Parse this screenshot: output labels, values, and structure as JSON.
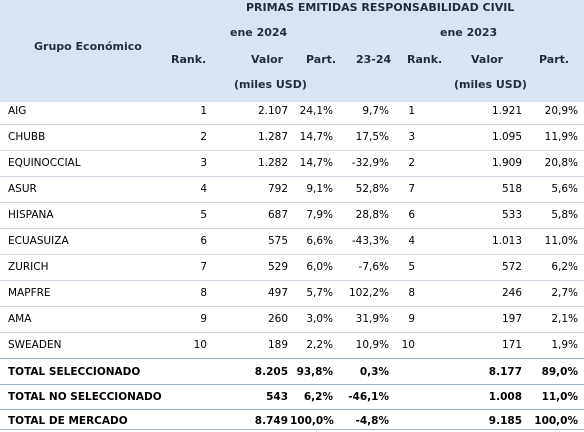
{
  "header": {
    "title": "PRIMAS EMITIDAS RESPONSABILIDAD CIVIL",
    "group_label": "Grupo Económico",
    "period_a": "ene 2024",
    "period_b": "ene 2023",
    "rank_a": "Rank.",
    "valor_a": "Valor",
    "units_a": "(miles USD)",
    "part_a": "Part.",
    "var": "23-24",
    "rank_b": "Rank.",
    "valor_b": "Valor",
    "units_b": "(miles USD)",
    "part_b": "Part."
  },
  "rows": [
    {
      "name": "AIG",
      "rank_a": "1",
      "valor_a": "2.107",
      "part_a": "24,1%",
      "var": "9,7%",
      "rank_b": "1",
      "valor_b": "1.921",
      "part_b": "20,9%"
    },
    {
      "name": "CHUBB",
      "rank_a": "2",
      "valor_a": "1.287",
      "part_a": "14,7%",
      "var": "17,5%",
      "rank_b": "3",
      "valor_b": "1.095",
      "part_b": "11,9%"
    },
    {
      "name": "EQUINOCCIAL",
      "rank_a": "3",
      "valor_a": "1.282",
      "part_a": "14,7%",
      "var": "-32,9%",
      "rank_b": "2",
      "valor_b": "1.909",
      "part_b": "20,8%"
    },
    {
      "name": "ASUR",
      "rank_a": "4",
      "valor_a": "792",
      "part_a": "9,1%",
      "var": "52,8%",
      "rank_b": "7",
      "valor_b": "518",
      "part_b": "5,6%"
    },
    {
      "name": "HISPANA",
      "rank_a": "5",
      "valor_a": "687",
      "part_a": "7,9%",
      "var": "28,8%",
      "rank_b": "6",
      "valor_b": "533",
      "part_b": "5,8%"
    },
    {
      "name": "ECUASUIZA",
      "rank_a": "6",
      "valor_a": "575",
      "part_a": "6,6%",
      "var": "-43,3%",
      "rank_b": "4",
      "valor_b": "1.013",
      "part_b": "11,0%"
    },
    {
      "name": "ZURICH",
      "rank_a": "7",
      "valor_a": "529",
      "part_a": "6,0%",
      "var": "-7,6%",
      "rank_b": "5",
      "valor_b": "572",
      "part_b": "6,2%"
    },
    {
      "name": "MAPFRE",
      "rank_a": "8",
      "valor_a": "497",
      "part_a": "5,7%",
      "var": "102,2%",
      "rank_b": "8",
      "valor_b": "246",
      "part_b": "2,7%"
    },
    {
      "name": "AMA",
      "rank_a": "9",
      "valor_a": "260",
      "part_a": "3,0%",
      "var": "31,9%",
      "rank_b": "9",
      "valor_b": "197",
      "part_b": "2,1%"
    },
    {
      "name": "SWEADEN",
      "rank_a": "10",
      "valor_a": "189",
      "part_a": "2,2%",
      "var": "10,9%",
      "rank_b": "10",
      "valor_b": "171",
      "part_b": "1,9%"
    }
  ],
  "totals": [
    {
      "name": "TOTAL SELECCIONADO",
      "valor_a": "8.205",
      "part_a": "93,8%",
      "var": "0,3%",
      "valor_b": "8.177",
      "part_b": "89,0%"
    },
    {
      "name": "TOTAL NO SELECCIONADO",
      "valor_a": "543",
      "part_a": "6,2%",
      "var": "-46,1%",
      "valor_b": "1.008",
      "part_b": "11,0%"
    },
    {
      "name": "TOTAL DE MERCADO",
      "valor_a": "8.749",
      "part_a": "100,0%",
      "var": "-4,8%",
      "valor_b": "9.185",
      "part_b": "100,0%"
    }
  ]
}
